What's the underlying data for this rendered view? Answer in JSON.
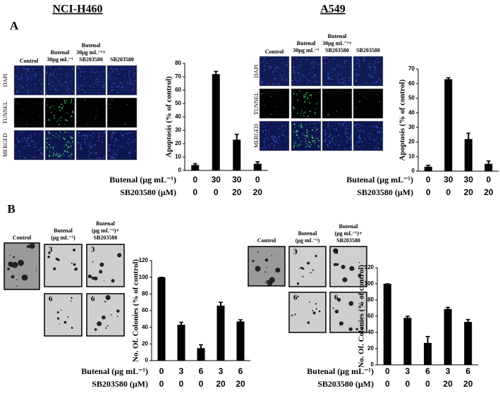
{
  "figure": {
    "cell_lines": [
      "NCI-H460",
      "A549"
    ],
    "panel_labels": [
      "A",
      "B"
    ],
    "panel_a": {
      "columns": [
        [
          "Control"
        ],
        [
          "Butenal",
          "30μg mL⁻¹"
        ],
        [
          "Butenal",
          "30μg mL⁻¹+",
          "SB203580"
        ],
        [
          "SB203580"
        ]
      ],
      "rows": [
        "DAPI",
        "TUNNEL",
        "MERGED"
      ]
    },
    "panel_b": {
      "columns": [
        [
          "Control"
        ],
        [
          "Butenal",
          "(μg mL⁻¹)"
        ],
        [
          "Butenal",
          "(μg mL⁻¹)+",
          "SB203580"
        ]
      ],
      "doses": [
        "3",
        "6"
      ]
    }
  },
  "chart_data": [
    {
      "type": "bar",
      "ylabel": "Apoptosis (% of control)",
      "color": "#000000",
      "category_rows": [
        {
          "label": "Butenal (μg mL⁻¹)",
          "values": [
            0,
            30,
            30,
            0
          ]
        },
        {
          "label": "SB203580 (μM)",
          "values": [
            0,
            0,
            20,
            20
          ]
        }
      ],
      "values": [
        4,
        72,
        23,
        5
      ],
      "errors": [
        1,
        2,
        4,
        1.5
      ],
      "ylim": [
        0,
        80
      ],
      "yticks": [
        0,
        10,
        20,
        30,
        40,
        50,
        60,
        70,
        80
      ]
    },
    {
      "type": "bar",
      "ylabel": "Apoptosis (% of control)",
      "color": "#000000",
      "category_rows": [
        {
          "label": "Butenal (μg mL⁻¹)",
          "values": [
            0,
            30,
            30,
            0
          ]
        },
        {
          "label": "SB203580 (μM)",
          "values": [
            0,
            0,
            20,
            20
          ]
        }
      ],
      "values": [
        3,
        63,
        22,
        5
      ],
      "errors": [
        1,
        1,
        4,
        2
      ],
      "ylim": [
        0,
        70
      ],
      "yticks": [
        0,
        10,
        20,
        30,
        40,
        50,
        60,
        70
      ]
    },
    {
      "type": "bar",
      "ylabel": "No. Of. Colonies (% of control)",
      "color": "#000000",
      "category_rows": [
        {
          "label": "Butenal (μg mL⁻¹)",
          "values": [
            0,
            3,
            6,
            3,
            6
          ]
        },
        {
          "label": "SB203580 (μM)",
          "values": [
            0,
            0,
            0,
            20,
            20
          ]
        }
      ],
      "values": [
        100,
        43,
        15,
        66,
        47
      ],
      "errors": [
        0,
        3,
        4,
        4,
        2
      ],
      "ylim": [
        0,
        120
      ],
      "yticks": [
        0,
        20,
        40,
        60,
        80,
        100,
        120
      ]
    },
    {
      "type": "bar",
      "ylabel": "No. Of. Colonies (% of control)",
      "color": "#000000",
      "category_rows": [
        {
          "label": "Butenal (μg mL⁻¹)",
          "values": [
            0,
            3,
            6,
            3,
            6
          ]
        },
        {
          "label": "SB203580 (μM)",
          "values": [
            0,
            0,
            0,
            20,
            20
          ]
        }
      ],
      "values": [
        100,
        58,
        27,
        69,
        53
      ],
      "errors": [
        0,
        2,
        8,
        2,
        3
      ],
      "ylim": [
        0,
        120
      ],
      "yticks": [
        0,
        20,
        40,
        60,
        80,
        100,
        120
      ]
    }
  ]
}
